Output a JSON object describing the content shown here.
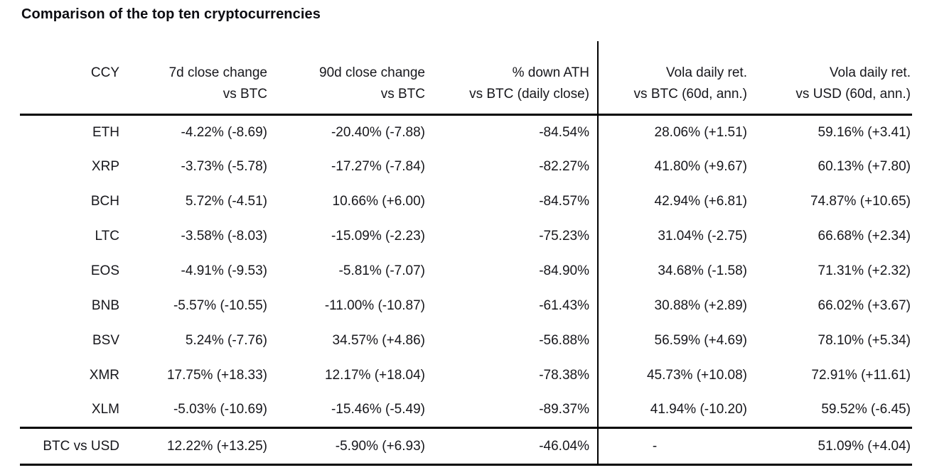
{
  "title": "Comparison of the top ten cryptocurrencies",
  "styles": {
    "background": "#ffffff",
    "text_color": "#17171c",
    "border_color": "#000000"
  },
  "chart_data": {
    "type": "table",
    "title": "Comparison of the top ten cryptocurrencies",
    "columns": [
      {
        "id": "ccy",
        "line1": "CCY",
        "line2": ""
      },
      {
        "id": "7d-close-change-vs-btc",
        "line1": "7d close change",
        "line2": "vs BTC"
      },
      {
        "id": "90d-close-change-vs-btc",
        "line1": "90d close change",
        "line2": "vs BTC"
      },
      {
        "id": "pct-down-ath-vs-btc",
        "line1": "% down ATH",
        "line2": "vs BTC (daily close)"
      },
      {
        "id": "vola-daily-ret-vs-btc",
        "line1": "Vola daily ret.",
        "line2": "vs BTC (60d, ann.)"
      },
      {
        "id": "vola-daily-ret-vs-usd",
        "line1": "Vola daily ret.",
        "line2": "vs USD (60d, ann.)"
      }
    ],
    "rows": [
      [
        "ETH",
        "-4.22% (-8.69)",
        "-20.40% (-7.88)",
        "-84.54%",
        "28.06% (+1.51)",
        "59.16% (+3.41)"
      ],
      [
        "XRP",
        "-3.73% (-5.78)",
        "-17.27% (-7.84)",
        "-82.27%",
        "41.80% (+9.67)",
        "60.13% (+7.80)"
      ],
      [
        "BCH",
        "5.72% (-4.51)",
        "10.66% (+6.00)",
        "-84.57%",
        "42.94% (+6.81)",
        "74.87% (+10.65)"
      ],
      [
        "LTC",
        "-3.58% (-8.03)",
        "-15.09% (-2.23)",
        "-75.23%",
        "31.04% (-2.75)",
        "66.68% (+2.34)"
      ],
      [
        "EOS",
        "-4.91% (-9.53)",
        "-5.81% (-7.07)",
        "-84.90%",
        "34.68% (-1.58)",
        "71.31% (+2.32)"
      ],
      [
        "BNB",
        "-5.57% (-10.55)",
        "-11.00% (-10.87)",
        "-61.43%",
        "30.88% (+2.89)",
        "66.02% (+3.67)"
      ],
      [
        "BSV",
        "5.24% (-7.76)",
        "34.57% (+4.86)",
        "-56.88%",
        "56.59% (+4.69)",
        "78.10% (+5.34)"
      ],
      [
        "XMR",
        "17.75% (+18.33)",
        "12.17% (+18.04)",
        "-78.38%",
        "45.73% (+10.08)",
        "72.91% (+11.61)"
      ],
      [
        "XLM",
        "-5.03% (-10.69)",
        "-15.46% (-5.49)",
        "-89.37%",
        "41.94% (-10.20)",
        "59.52% (-6.45)"
      ]
    ],
    "footer_row": [
      "BTC vs USD",
      "12.22% (+13.25)",
      "-5.90% (+6.93)",
      "-46.04%",
      "-",
      "51.09% (+4.04)"
    ]
  }
}
